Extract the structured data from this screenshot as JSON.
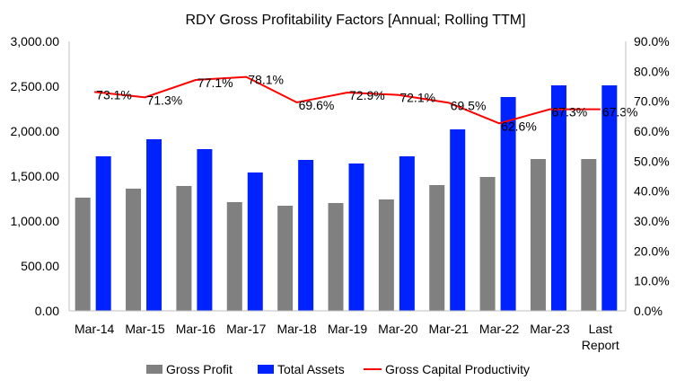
{
  "chart_data": {
    "type": "bar",
    "title": "RDY Gross Profitability Factors [Annual; Rolling TTM]",
    "categories": [
      "Mar-14",
      "Mar-15",
      "Mar-16",
      "Mar-17",
      "Mar-18",
      "Mar-19",
      "Mar-20",
      "Mar-21",
      "Mar-22",
      "Mar-23",
      "Last Report"
    ],
    "series": [
      {
        "name": "Gross Profit",
        "type": "bar",
        "axis": "left",
        "color": "#808080",
        "values": [
          1260,
          1360,
          1390,
          1210,
          1170,
          1200,
          1240,
          1400,
          1490,
          1690,
          1690
        ]
      },
      {
        "name": "Total Assets",
        "type": "bar",
        "axis": "left",
        "color": "#0022ff",
        "values": [
          1720,
          1910,
          1800,
          1540,
          1680,
          1640,
          1720,
          2020,
          2380,
          2510,
          2510
        ]
      },
      {
        "name": "Gross Capital Productivity",
        "type": "line",
        "axis": "right",
        "color": "#ff0000",
        "values": [
          73.1,
          71.3,
          77.1,
          78.1,
          69.6,
          72.9,
          72.1,
          69.5,
          62.6,
          67.3,
          67.3
        ],
        "labels": [
          "73.1%",
          "71.3%",
          "77.1%",
          "78.1%",
          "69.6%",
          "72.9%",
          "72.1%",
          "69.5%",
          "62.6%",
          "67.3%",
          "67.3%"
        ]
      }
    ],
    "y_left": {
      "min": 0,
      "max": 3000,
      "step": 500,
      "tick_labels": [
        "0.00",
        "500.00",
        "1,000.00",
        "1,500.00",
        "2,000.00",
        "2,500.00",
        "3,000.00"
      ]
    },
    "y_right": {
      "min": 0,
      "max": 90,
      "step": 10,
      "tick_labels": [
        "0.0%",
        "10.0%",
        "20.0%",
        "30.0%",
        "40.0%",
        "50.0%",
        "60.0%",
        "70.0%",
        "80.0%",
        "90.0%"
      ]
    },
    "grid": false,
    "legend_position": "bottom"
  }
}
